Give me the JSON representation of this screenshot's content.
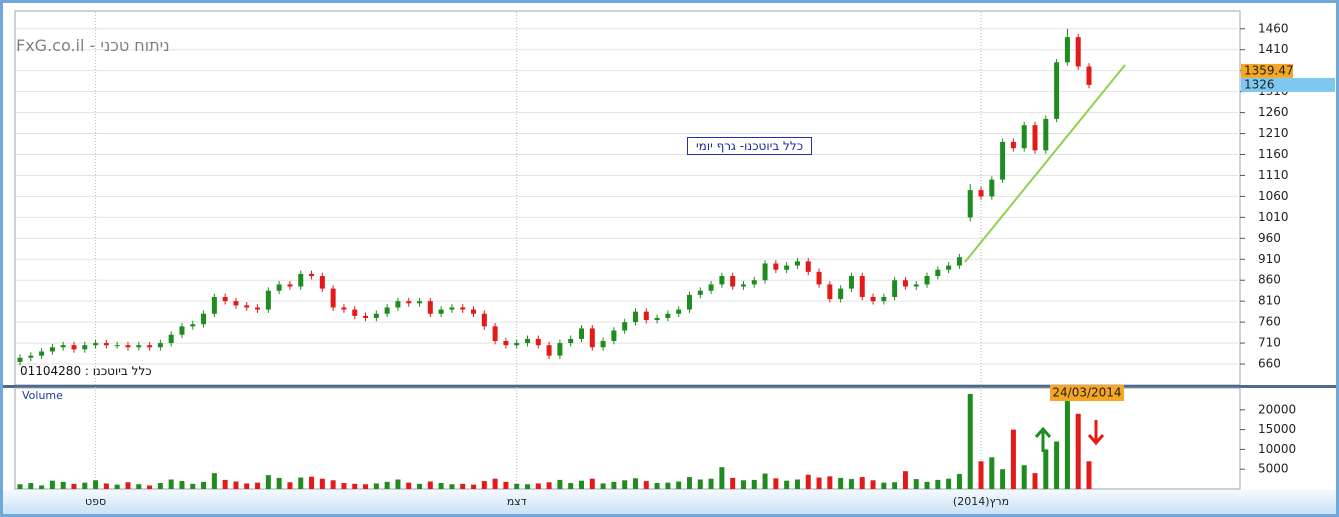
{
  "header": {
    "title": "ניתוח טכני - FxG.co.il"
  },
  "chart_data": [
    {
      "type": "candlestick",
      "title": "כלל ביוטכנו- גרף יומי",
      "subtitle": "כלל ביוטכנו : 01104280",
      "up_color": "#1e8c1e",
      "down_color": "#e31a1a",
      "categories": [
        null,
        null,
        null,
        null,
        null,
        null,
        null,
        "ספט",
        null,
        null,
        null,
        null,
        null,
        null,
        null,
        null,
        null,
        null,
        null,
        null,
        null,
        null,
        null,
        null,
        null,
        null,
        null,
        null,
        null,
        null,
        null,
        null,
        null,
        null,
        null,
        null,
        null,
        null,
        null,
        null,
        null,
        null,
        null,
        null,
        null,
        null,
        "דצמ",
        null,
        null,
        null,
        null,
        null,
        null,
        null,
        null,
        null,
        null,
        null,
        null,
        null,
        null,
        null,
        null,
        null,
        null,
        null,
        null,
        null,
        null,
        null,
        null,
        null,
        null,
        null,
        null,
        null,
        null,
        null,
        null,
        null,
        null,
        null,
        null,
        null,
        null,
        null,
        null,
        null,
        null,
        "(2014)מרץ",
        null,
        null,
        null,
        null,
        null,
        null,
        null,
        null,
        null,
        null
      ],
      "open": [
        665,
        675,
        680,
        690,
        700,
        705,
        695,
        705,
        710,
        705,
        705,
        700,
        705,
        700,
        710,
        730,
        750,
        755,
        780,
        820,
        810,
        800,
        795,
        790,
        835,
        850,
        845,
        875,
        870,
        840,
        795,
        790,
        775,
        770,
        780,
        795,
        810,
        805,
        810,
        780,
        790,
        795,
        790,
        780,
        750,
        715,
        705,
        710,
        720,
        705,
        680,
        710,
        720,
        745,
        700,
        715,
        740,
        760,
        785,
        765,
        770,
        780,
        790,
        825,
        835,
        850,
        870,
        845,
        850,
        860,
        900,
        885,
        895,
        905,
        880,
        850,
        815,
        840,
        870,
        820,
        810,
        820,
        860,
        845,
        850,
        870,
        885,
        895,
        1010,
        1075,
        1060,
        1100,
        1190,
        1175,
        1230,
        1170,
        1245,
        1380,
        1440,
        1370
      ],
      "high": [
        683,
        688,
        698,
        708,
        713,
        713,
        713,
        718,
        718,
        713,
        713,
        713,
        713,
        718,
        738,
        758,
        763,
        788,
        828,
        828,
        818,
        808,
        803,
        843,
        858,
        858,
        883,
        883,
        878,
        848,
        803,
        798,
        783,
        788,
        803,
        818,
        818,
        818,
        818,
        798,
        803,
        803,
        798,
        788,
        758,
        723,
        718,
        728,
        728,
        713,
        718,
        728,
        753,
        753,
        723,
        748,
        768,
        793,
        793,
        778,
        788,
        798,
        833,
        843,
        858,
        878,
        878,
        858,
        868,
        908,
        908,
        903,
        913,
        913,
        888,
        858,
        848,
        878,
        878,
        828,
        828,
        868,
        868,
        858,
        878,
        893,
        903,
        923,
        1090,
        1083,
        1108,
        1198,
        1198,
        1238,
        1238,
        1253,
        1388,
        1460,
        1448,
        1378
      ],
      "low": [
        657,
        667,
        672,
        682,
        692,
        687,
        687,
        697,
        697,
        697,
        692,
        692,
        692,
        692,
        702,
        722,
        742,
        747,
        772,
        802,
        792,
        787,
        782,
        782,
        827,
        837,
        837,
        862,
        832,
        787,
        782,
        767,
        762,
        762,
        772,
        787,
        797,
        797,
        772,
        772,
        782,
        782,
        772,
        742,
        707,
        697,
        697,
        702,
        697,
        672,
        672,
        702,
        712,
        692,
        692,
        707,
        732,
        752,
        757,
        757,
        762,
        772,
        782,
        817,
        827,
        842,
        837,
        837,
        842,
        852,
        877,
        877,
        887,
        872,
        842,
        807,
        807,
        832,
        812,
        802,
        802,
        812,
        837,
        837,
        842,
        862,
        877,
        887,
        1000,
        1052,
        1052,
        1092,
        1167,
        1167,
        1162,
        1162,
        1237,
        1372,
        1362,
        1318
      ],
      "close": [
        675,
        680,
        690,
        700,
        705,
        695,
        705,
        710,
        705,
        705,
        700,
        705,
        700,
        710,
        730,
        750,
        755,
        780,
        820,
        810,
        800,
        795,
        790,
        835,
        850,
        845,
        875,
        870,
        840,
        795,
        790,
        775,
        770,
        780,
        795,
        810,
        805,
        810,
        780,
        790,
        795,
        790,
        780,
        750,
        715,
        705,
        710,
        720,
        705,
        680,
        710,
        720,
        745,
        700,
        715,
        740,
        760,
        785,
        765,
        770,
        780,
        790,
        825,
        835,
        850,
        870,
        845,
        850,
        860,
        900,
        885,
        895,
        905,
        880,
        850,
        815,
        840,
        870,
        820,
        810,
        820,
        860,
        845,
        850,
        870,
        885,
        895,
        915,
        1075,
        1060,
        1100,
        1190,
        1175,
        1230,
        1170,
        1245,
        1380,
        1440,
        1370,
        1326
      ],
      "ylim": [
        610,
        1500
      ],
      "yticks": [
        660,
        710,
        760,
        810,
        860,
        910,
        960,
        1010,
        1060,
        1110,
        1160,
        1210,
        1260,
        1310,
        1360,
        1410,
        1460
      ],
      "marker_price": 1359.47,
      "last_price": 1326
    },
    {
      "type": "bar",
      "title": "Volume",
      "cursor_date": "24/03/2014",
      "values": [
        1200,
        1500,
        900,
        2100,
        1800,
        1300,
        1600,
        2200,
        1400,
        1100,
        1700,
        1200,
        900,
        1500,
        2400,
        2000,
        1300,
        1800,
        4000,
        2300,
        1900,
        1400,
        1600,
        3500,
        2800,
        1700,
        2900,
        3100,
        2600,
        2200,
        1500,
        1300,
        1200,
        1400,
        1800,
        2400,
        1600,
        1300,
        1900,
        1500,
        1200,
        1300,
        1100,
        2000,
        2600,
        1800,
        1300,
        1200,
        1400,
        1700,
        2300,
        1500,
        2100,
        2600,
        1400,
        1800,
        2200,
        2700,
        2000,
        1500,
        1600,
        1900,
        3000,
        2400,
        2600,
        5500,
        2800,
        2200,
        2300,
        3900,
        2700,
        2100,
        2400,
        3600,
        2900,
        3200,
        2800,
        2500,
        3000,
        2200,
        1600,
        1700,
        4500,
        2500,
        1800,
        2300,
        2600,
        3800,
        24000,
        7000,
        8000,
        5000,
        15000,
        6000,
        4000,
        10000,
        12000,
        24000,
        19000,
        7000
      ],
      "ylim": [
        0,
        25000
      ],
      "yticks": [
        5000,
        10000,
        15000,
        20000
      ]
    }
  ]
}
